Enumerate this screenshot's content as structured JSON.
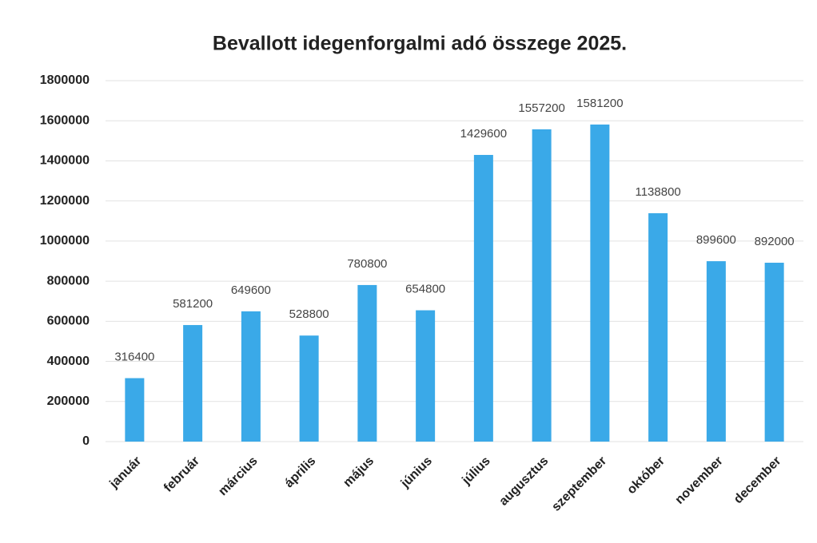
{
  "chart_data": {
    "type": "bar",
    "title": "Bevallott idegenforgalmi adó összege 2025.",
    "categories": [
      "január",
      "február",
      "március",
      "április",
      "május",
      "június",
      "július",
      "augusztus",
      "szeptember",
      "október",
      "november",
      "december"
    ],
    "values": [
      316400,
      581200,
      649600,
      528800,
      780800,
      654800,
      1429600,
      1557200,
      1581200,
      1138800,
      899600,
      892000
    ],
    "color": "#3aa9e8",
    "ylim": [
      0,
      1800000
    ],
    "yticks": [
      0,
      200000,
      400000,
      600000,
      800000,
      1000000,
      1200000,
      1400000,
      1600000,
      1800000
    ],
    "grid": true
  }
}
